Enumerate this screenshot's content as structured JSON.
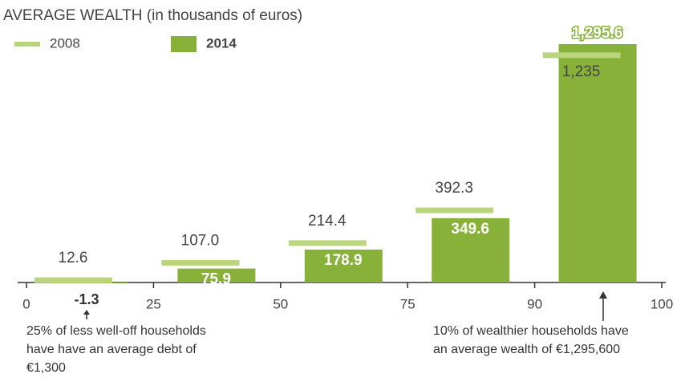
{
  "chart_data": {
    "type": "bar",
    "title": "AVERAGE WEALTH (in thousands of euros)",
    "x_edges": [
      0,
      25,
      50,
      75,
      90,
      100
    ],
    "ylim": [
      0,
      1300
    ],
    "series": [
      {
        "name": "2008",
        "color": "#bad57e",
        "values": [
          12.6,
          107,
          214.4,
          392.3,
          1235
        ],
        "value_labels": [
          "12.6",
          "107.0",
          "214.4",
          "392.3",
          "1,235"
        ]
      },
      {
        "name": "2014",
        "color": "#88b13a",
        "values": [
          -1.3,
          75.9,
          178.9,
          349.6,
          1295.6
        ],
        "value_labels": [
          "-1.3",
          "75.9",
          "178.9",
          "349.6",
          "1,295.6"
        ]
      }
    ],
    "annotations": [
      [
        "25% of less well-off households",
        "have have an average debt of",
        "€1,300"
      ],
      [
        "10% of wealthier households have",
        "an average wealth of €1,295,600"
      ]
    ]
  }
}
